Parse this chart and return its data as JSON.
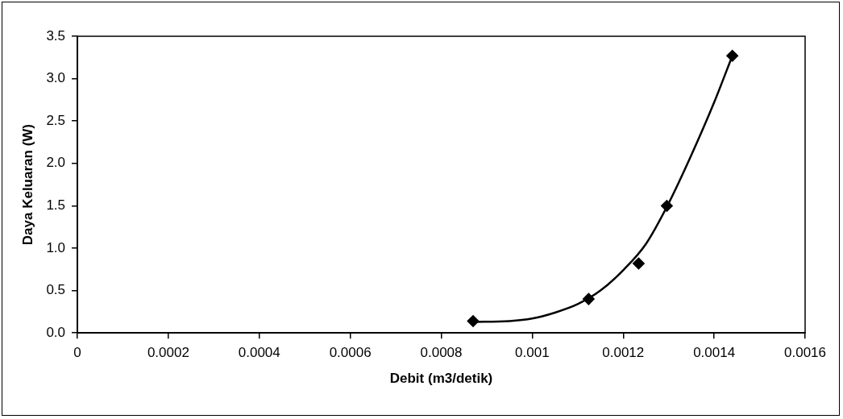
{
  "chart_data": {
    "type": "scatter",
    "xlabel": "Debit (m3/detik)",
    "ylabel": "Daya Keluaran (W)",
    "xlim": [
      0,
      0.0016
    ],
    "xticks": [
      0,
      0.0002,
      0.0004,
      0.0006,
      0.0008,
      0.001,
      0.0012,
      0.0014,
      0.0016
    ],
    "ylim": [
      0,
      3.5
    ],
    "yticks": [
      {
        "value": 0,
        "label": "0.0"
      },
      {
        "value": 0.5,
        "label": "0.5"
      },
      {
        "value": 1,
        "label": "1.0"
      },
      {
        "value": 1.5,
        "label": "1.5"
      },
      {
        "value": 2,
        "label": "2.0"
      },
      {
        "value": 2.5,
        "label": "2.5"
      },
      {
        "value": 3,
        "label": "3.0"
      },
      {
        "value": 3.5,
        "label": "3.5"
      }
    ],
    "grid": false,
    "legend": false,
    "series": [
      {
        "color": "#000000",
        "marker": "diamond",
        "x": [
          0.00087,
          0.001124,
          0.001234,
          0.001296,
          0.00144
        ],
        "values": [
          0.14,
          0.4,
          0.82,
          1.5,
          3.27
        ]
      },
      {
        "type": "line",
        "color": "#000000",
        "marker": "none",
        "line_style": "solid",
        "x": [
          0.00087,
          0.00095,
          0.001,
          0.00105,
          0.0011,
          0.00115,
          0.0012,
          0.00125,
          0.0013,
          0.00135,
          0.0014,
          0.00144
        ],
        "values": [
          0.13,
          0.14,
          0.17,
          0.24,
          0.34,
          0.5,
          0.74,
          1.05,
          1.53,
          2.1,
          2.72,
          3.27
        ]
      }
    ]
  }
}
